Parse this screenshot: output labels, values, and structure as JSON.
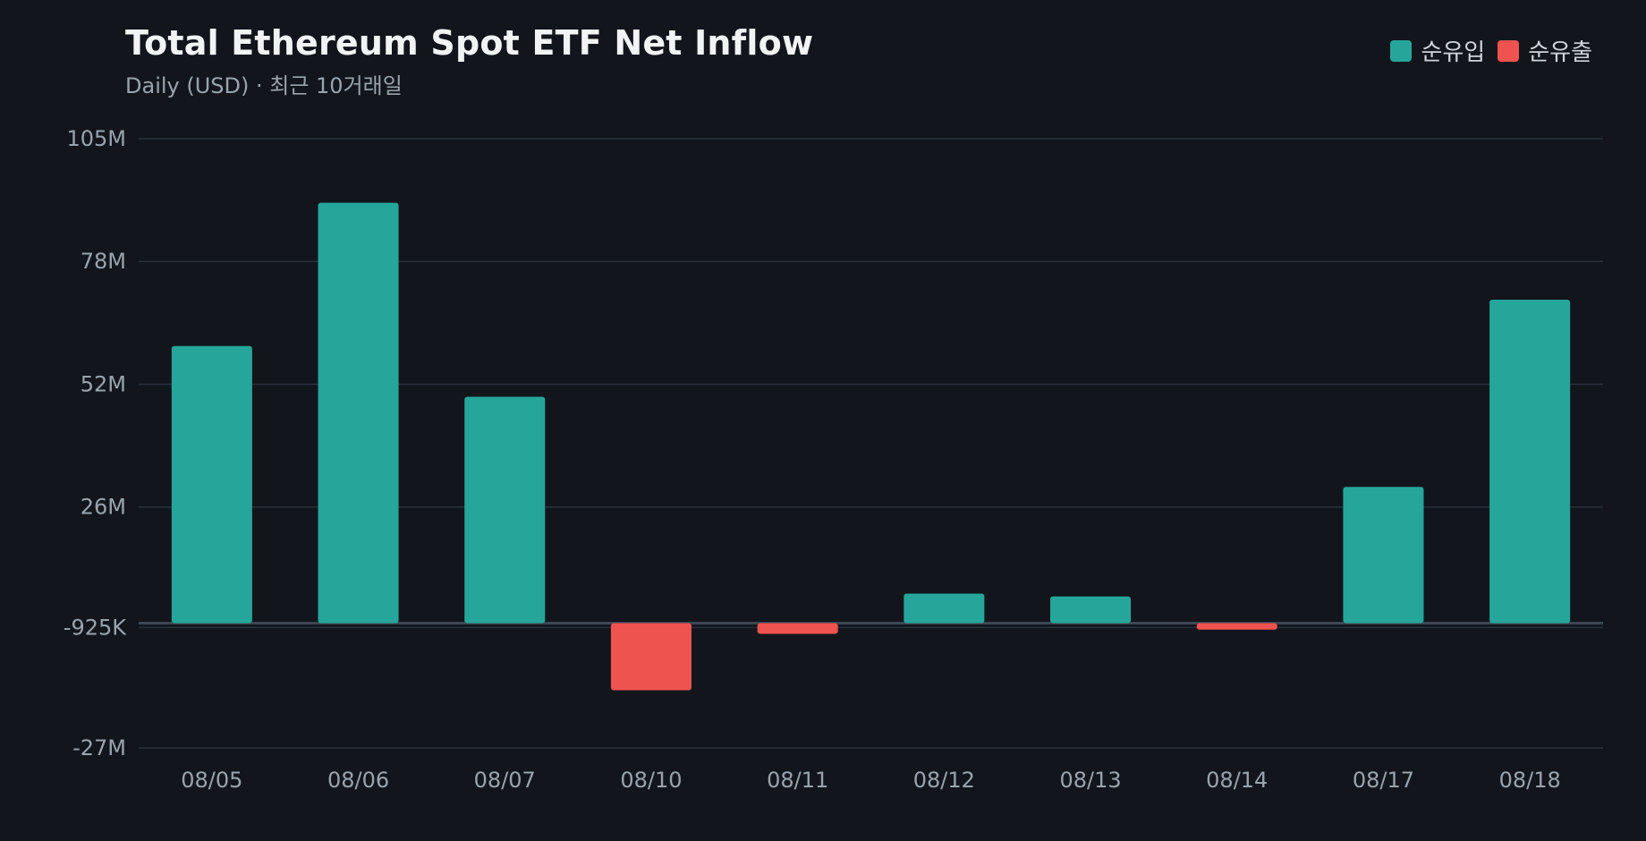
{
  "chart_data": {
    "type": "bar",
    "title": "Total Ethereum Spot ETF Net Inflow",
    "subtitle": "Daily (USD) · 최근 10거래일",
    "categories": [
      "08/05",
      "08/06",
      "08/07",
      "08/10",
      "08/11",
      "08/12",
      "08/13",
      "08/14",
      "08/17",
      "08/18"
    ],
    "values": [
      60000000,
      91000000,
      49000000,
      -14500000,
      -2300000,
      6400000,
      5800000,
      -1400000,
      29500000,
      70000000
    ],
    "yticks": [
      "105M",
      "78M",
      "52M",
      "26M",
      "-925K",
      "-27M"
    ],
    "ytick_values": [
      104862500,
      78287500,
      51712500,
      25137500,
      -925000,
      -27000000
    ],
    "ylim": [
      -27000000,
      104862500
    ],
    "zero_line": true,
    "legend": [
      {
        "label": "순유입",
        "color": "#26a69a"
      },
      {
        "label": "순유출",
        "color": "#ef5350"
      }
    ],
    "legend_position": "top-right",
    "grid": true,
    "colors": {
      "positive": "#26a69a",
      "negative": "#ef5350",
      "grid": "#2a313a",
      "zero": "#3d4753",
      "background": "#12161c"
    }
  }
}
